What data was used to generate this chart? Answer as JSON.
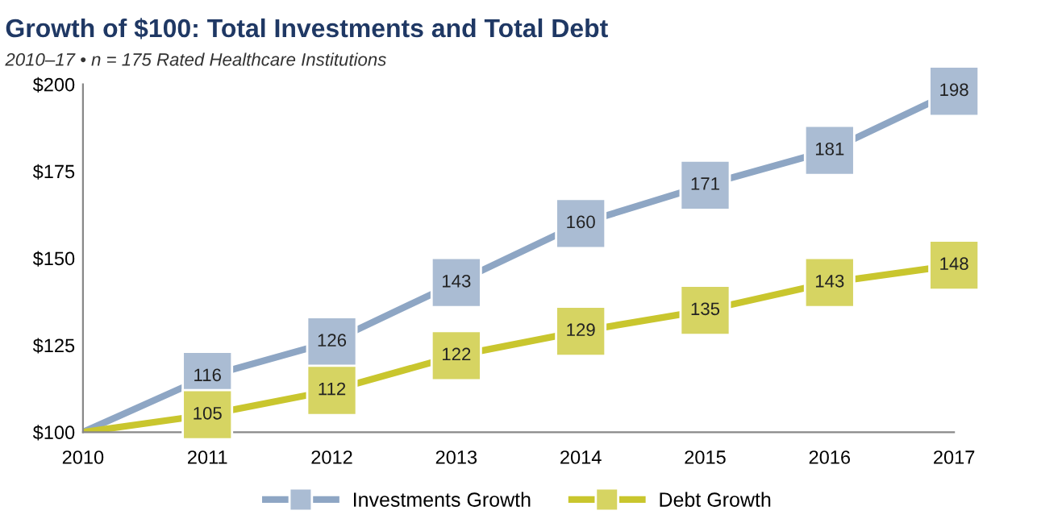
{
  "chart_data": {
    "type": "line",
    "title": "Growth of $100: Total Investments and Total Debt",
    "subtitle": "2010–17 • n = 175 Rated Healthcare Institutions",
    "categories": [
      "2010",
      "2011",
      "2012",
      "2013",
      "2014",
      "2015",
      "2016",
      "2017"
    ],
    "series": [
      {
        "name": "Investments Growth",
        "color": "#8ea6c4",
        "values": [
          100,
          116,
          126,
          143,
          160,
          171,
          181,
          198
        ],
        "value_labels": [
          null,
          "116",
          "126",
          "143",
          "160",
          "171",
          "181",
          "198"
        ]
      },
      {
        "name": "Debt Growth",
        "color": "#c9c62e",
        "values": [
          100,
          105,
          112,
          122,
          129,
          135,
          143,
          148
        ],
        "value_labels": [
          null,
          "105",
          "112",
          "122",
          "129",
          "135",
          "143",
          "148"
        ]
      }
    ],
    "ylim": [
      100,
      200
    ],
    "yticks": [
      {
        "value": 100,
        "label": "$100"
      },
      {
        "value": 125,
        "label": "$125"
      },
      {
        "value": 150,
        "label": "$150"
      },
      {
        "value": 175,
        "label": "$175"
      },
      {
        "value": 200,
        "label": "$200"
      }
    ],
    "grid": false,
    "legend": "bottom",
    "marker": "square",
    "line_style": "solid"
  }
}
